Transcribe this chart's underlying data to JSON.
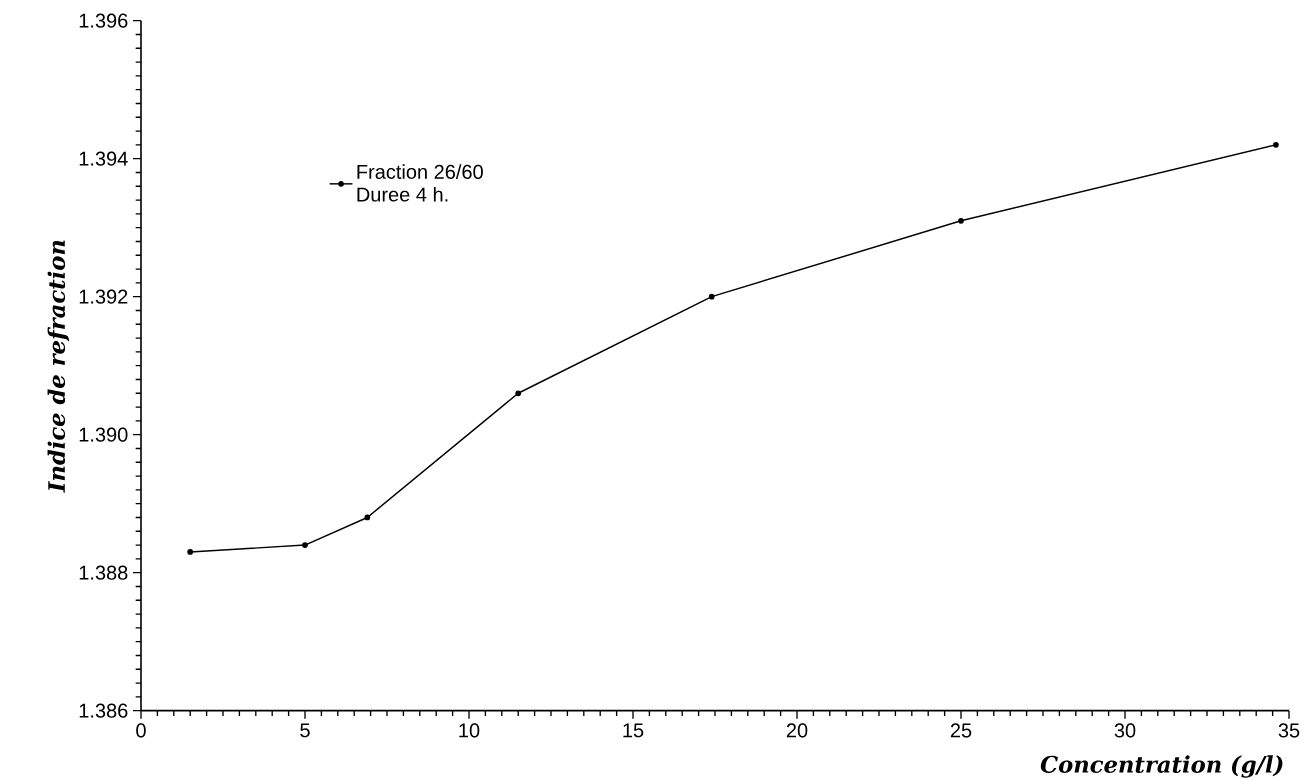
{
  "chart_data": {
    "type": "line",
    "xlabel": "Concentration (g/l)",
    "ylabel": "Indice de refraction",
    "x": [
      1.5,
      5.0,
      6.9,
      11.5,
      17.4,
      25.0,
      34.6
    ],
    "series": [
      {
        "name": "Fraction 26/60",
        "color": "#000000",
        "values": [
          1.3883,
          1.3884,
          1.3888,
          1.3906,
          1.392,
          1.3931,
          1.3942
        ]
      }
    ],
    "annotations": [
      "Duree 4 h."
    ],
    "xlim": [
      0,
      35
    ],
    "ylim": [
      1.386,
      1.396
    ],
    "xticks": [
      0,
      5,
      10,
      15,
      20,
      25,
      30,
      35
    ],
    "yticks": [
      1.386,
      1.388,
      {
        "value": 1.39,
        "label": "1.390"
      },
      1.392,
      1.394,
      1.396
    ],
    "legend": "top left",
    "marker": "circle",
    "line_style": "solid",
    "grid": false
  }
}
